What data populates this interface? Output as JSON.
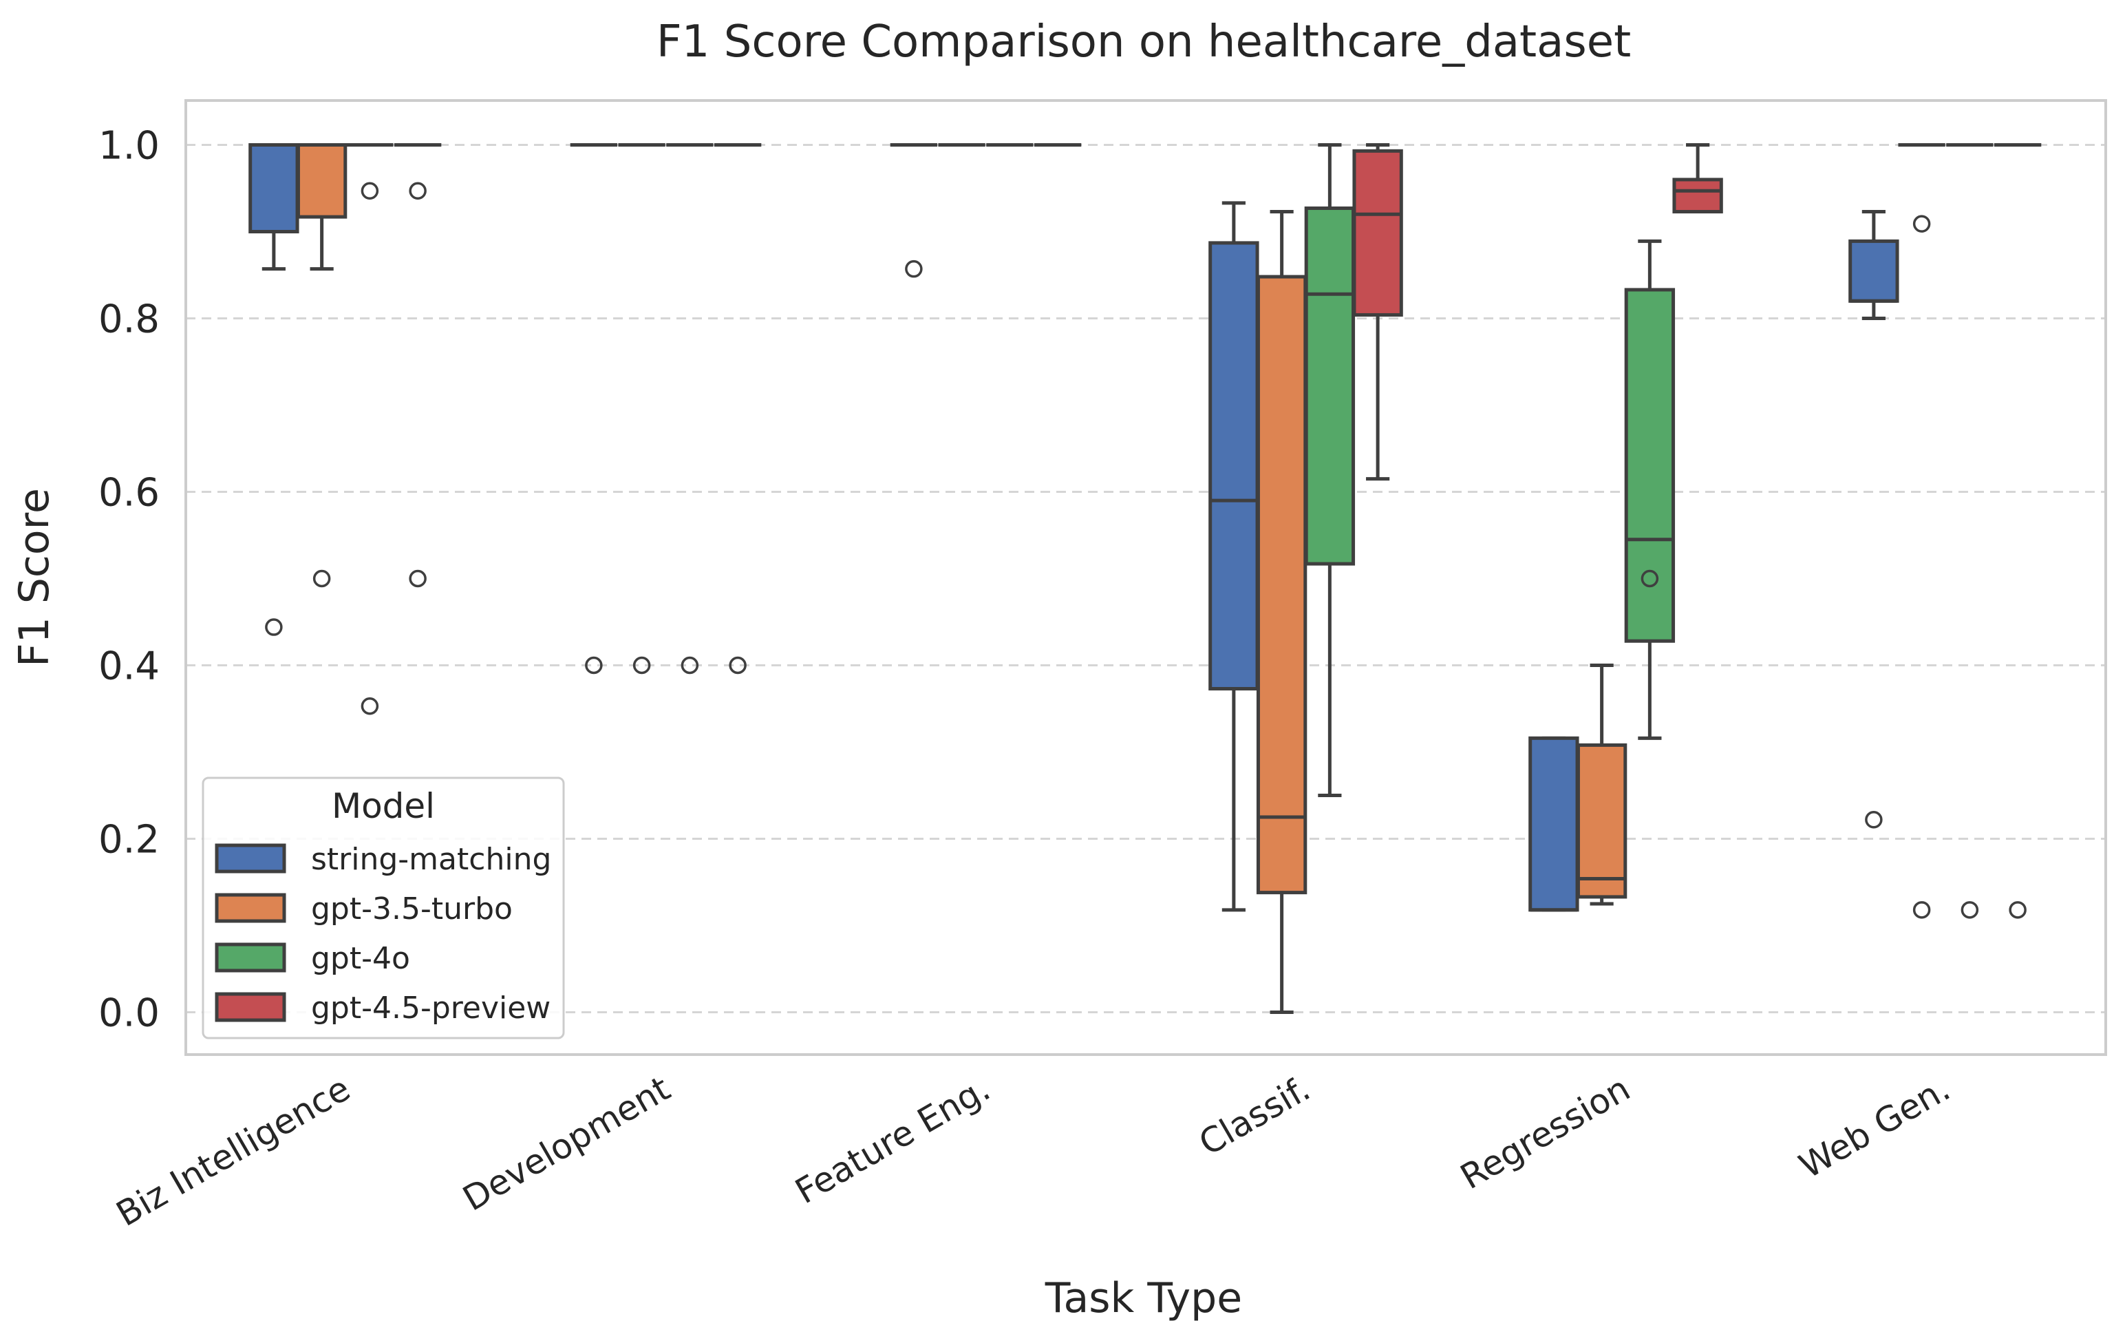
{
  "chart_data": {
    "type": "box",
    "title": "F1 Score Comparison on healthcare_dataset",
    "xlabel": "Task Type",
    "ylabel": "F1 Score",
    "ylim": [
      -0.05,
      1.05
    ],
    "yticks": [
      0.0,
      0.2,
      0.4,
      0.6,
      0.8,
      1.0
    ],
    "ytick_labels": [
      "0.0",
      "0.2",
      "0.4",
      "0.6",
      "0.8",
      "1.0"
    ],
    "grid": "horizontal dashed",
    "categories": [
      "Biz Intelligence",
      "Development",
      "Feature Eng.",
      "Classif.",
      "Regression",
      "Web Gen."
    ],
    "legend": {
      "title": "Model",
      "position": "lower-left"
    },
    "series": [
      {
        "name": "string-matching",
        "color": "#4c72b0",
        "boxes": [
          {
            "whislo": 0.857,
            "q1": 0.9,
            "med": 1.0,
            "q3": 1.0,
            "whishi": 1.0,
            "fliers": [
              0.444
            ]
          },
          {
            "whislo": 1.0,
            "q1": 1.0,
            "med": 1.0,
            "q3": 1.0,
            "whishi": 1.0,
            "fliers": [
              0.4
            ]
          },
          {
            "whislo": 1.0,
            "q1": 1.0,
            "med": 1.0,
            "q3": 1.0,
            "whishi": 1.0,
            "fliers": [
              0.857
            ]
          },
          {
            "whislo": 0.118,
            "q1": 0.373,
            "med": 0.59,
            "q3": 0.887,
            "whishi": 0.933,
            "fliers": []
          },
          {
            "whislo": 0.118,
            "q1": 0.118,
            "med": 0.118,
            "q3": 0.316,
            "whishi": 0.316,
            "fliers": []
          },
          {
            "whislo": 0.8,
            "q1": 0.82,
            "med": 0.82,
            "q3": 0.889,
            "whishi": 0.923,
            "fliers": [
              0.222
            ]
          }
        ]
      },
      {
        "name": "gpt-3.5-turbo",
        "color": "#dd8452",
        "boxes": [
          {
            "whislo": 0.857,
            "q1": 0.917,
            "med": 1.0,
            "q3": 1.0,
            "whishi": 1.0,
            "fliers": [
              0.5
            ]
          },
          {
            "whislo": 1.0,
            "q1": 1.0,
            "med": 1.0,
            "q3": 1.0,
            "whishi": 1.0,
            "fliers": [
              0.4
            ]
          },
          {
            "whislo": 1.0,
            "q1": 1.0,
            "med": 1.0,
            "q3": 1.0,
            "whishi": 1.0,
            "fliers": []
          },
          {
            "whislo": 0.0,
            "q1": 0.138,
            "med": 0.225,
            "q3": 0.848,
            "whishi": 0.923,
            "fliers": []
          },
          {
            "whislo": 0.125,
            "q1": 0.133,
            "med": 0.154,
            "q3": 0.308,
            "whishi": 0.4,
            "fliers": []
          },
          {
            "whislo": 1.0,
            "q1": 1.0,
            "med": 1.0,
            "q3": 1.0,
            "whishi": 1.0,
            "fliers": [
              0.909,
              0.118
            ]
          }
        ]
      },
      {
        "name": "gpt-4o",
        "color": "#55a868",
        "boxes": [
          {
            "whislo": 1.0,
            "q1": 1.0,
            "med": 1.0,
            "q3": 1.0,
            "whishi": 1.0,
            "fliers": [
              0.947,
              0.353
            ]
          },
          {
            "whislo": 1.0,
            "q1": 1.0,
            "med": 1.0,
            "q3": 1.0,
            "whishi": 1.0,
            "fliers": [
              0.4
            ]
          },
          {
            "whislo": 1.0,
            "q1": 1.0,
            "med": 1.0,
            "q3": 1.0,
            "whishi": 1.0,
            "fliers": []
          },
          {
            "whislo": 0.25,
            "q1": 0.517,
            "med": 0.828,
            "q3": 0.927,
            "whishi": 1.0,
            "fliers": []
          },
          {
            "whislo": 0.316,
            "q1": 0.428,
            "med": 0.545,
            "q3": 0.833,
            "whishi": 0.889,
            "fliers": [
              0.5
            ]
          },
          {
            "whislo": 1.0,
            "q1": 1.0,
            "med": 1.0,
            "q3": 1.0,
            "whishi": 1.0,
            "fliers": [
              0.118
            ]
          }
        ]
      },
      {
        "name": "gpt-4.5-preview",
        "color": "#c44e52",
        "boxes": [
          {
            "whislo": 1.0,
            "q1": 1.0,
            "med": 1.0,
            "q3": 1.0,
            "whishi": 1.0,
            "fliers": [
              0.947,
              0.5
            ]
          },
          {
            "whislo": 1.0,
            "q1": 1.0,
            "med": 1.0,
            "q3": 1.0,
            "whishi": 1.0,
            "fliers": [
              0.4
            ]
          },
          {
            "whislo": 1.0,
            "q1": 1.0,
            "med": 1.0,
            "q3": 1.0,
            "whishi": 1.0,
            "fliers": []
          },
          {
            "whislo": 0.615,
            "q1": 0.804,
            "med": 0.92,
            "q3": 0.993,
            "whishi": 1.0,
            "fliers": []
          },
          {
            "whislo": 0.923,
            "q1": 0.923,
            "med": 0.947,
            "q3": 0.96,
            "whishi": 1.0,
            "fliers": []
          },
          {
            "whislo": 1.0,
            "q1": 1.0,
            "med": 1.0,
            "q3": 1.0,
            "whishi": 1.0,
            "fliers": [
              0.118
            ]
          }
        ]
      }
    ]
  }
}
